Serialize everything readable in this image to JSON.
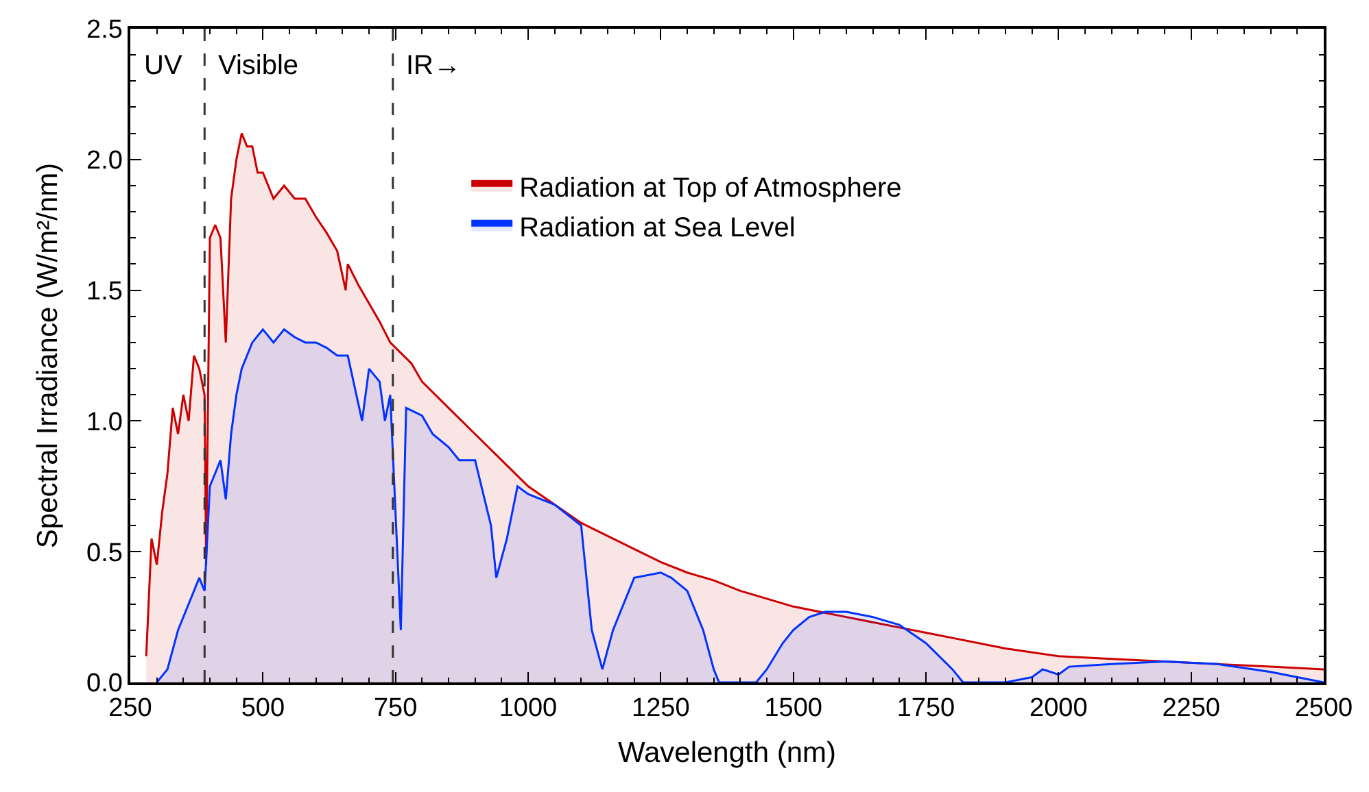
{
  "chart_data": {
    "type": "area",
    "xlabel": "Wavelength (nm)",
    "ylabel": "Spectral Irradiance (W/m²/nm)",
    "xlim": [
      250,
      2500
    ],
    "xticks": [
      250,
      500,
      750,
      1000,
      1250,
      1500,
      1750,
      2000,
      2250,
      2500
    ],
    "ylim": [
      0,
      2.5
    ],
    "yticks": [
      {
        "value": 0,
        "label": "0.0"
      },
      0.5,
      {
        "value": 1,
        "label": "1.0"
      },
      1.5,
      {
        "value": 2,
        "label": "2.0"
      },
      2.5
    ],
    "legend": "top",
    "marker": "none",
    "line_style": "solid",
    "ref_lines": [
      {
        "axis": "x",
        "value": 390,
        "line_style": "dashed",
        "color": "#333333"
      },
      {
        "axis": "x",
        "value": 745,
        "line_style": "dashed",
        "color": "#333333"
      }
    ],
    "annotations": [
      "UV",
      "Visible",
      "IR→"
    ],
    "series": [
      {
        "name": "Radiation at Top of Atmosphere",
        "color": "#cc0000",
        "x": [
          280,
          290,
          300,
          310,
          320,
          330,
          340,
          350,
          360,
          370,
          380,
          390,
          393,
          400,
          410,
          420,
          430,
          440,
          450,
          460,
          470,
          480,
          490,
          500,
          520,
          540,
          560,
          580,
          600,
          620,
          640,
          656,
          660,
          680,
          700,
          720,
          740,
          760,
          780,
          800,
          850,
          900,
          950,
          1000,
          1050,
          1100,
          1150,
          1200,
          1250,
          1300,
          1350,
          1400,
          1450,
          1500,
          1550,
          1600,
          1650,
          1700,
          1750,
          1800,
          1900,
          2000,
          2100,
          2200,
          2300,
          2400,
          2500
        ],
        "values": [
          0.1,
          0.55,
          0.45,
          0.65,
          0.8,
          1.05,
          0.95,
          1.1,
          1.0,
          1.25,
          1.2,
          1.1,
          0.45,
          1.7,
          1.75,
          1.7,
          1.3,
          1.85,
          2.0,
          2.1,
          2.05,
          2.05,
          1.95,
          1.95,
          1.85,
          1.9,
          1.85,
          1.85,
          1.78,
          1.72,
          1.65,
          1.5,
          1.6,
          1.52,
          1.45,
          1.38,
          1.3,
          1.26,
          1.22,
          1.15,
          1.05,
          0.95,
          0.85,
          0.75,
          0.68,
          0.61,
          0.56,
          0.51,
          0.46,
          0.42,
          0.39,
          0.35,
          0.32,
          0.29,
          0.27,
          0.25,
          0.23,
          0.21,
          0.19,
          0.17,
          0.13,
          0.1,
          0.09,
          0.08,
          0.07,
          0.06,
          0.05
        ]
      },
      {
        "name": "Radiation at Sea Level",
        "color": "#0033ff",
        "x": [
          300,
          320,
          340,
          360,
          380,
          390,
          400,
          410,
          420,
          430,
          440,
          450,
          460,
          480,
          500,
          520,
          540,
          560,
          580,
          600,
          620,
          640,
          660,
          687,
          700,
          720,
          730,
          740,
          760,
          770,
          800,
          820,
          850,
          870,
          900,
          930,
          940,
          960,
          980,
          1000,
          1050,
          1100,
          1120,
          1140,
          1160,
          1200,
          1250,
          1270,
          1300,
          1330,
          1350,
          1360,
          1400,
          1430,
          1450,
          1480,
          1500,
          1530,
          1560,
          1600,
          1650,
          1700,
          1750,
          1800,
          1820,
          1900,
          1950,
          1970,
          2000,
          2020,
          2100,
          2200,
          2300,
          2400,
          2500
        ],
        "values": [
          0,
          0.05,
          0.2,
          0.3,
          0.4,
          0.35,
          0.75,
          0.8,
          0.85,
          0.7,
          0.95,
          1.1,
          1.2,
          1.3,
          1.35,
          1.3,
          1.35,
          1.32,
          1.3,
          1.3,
          1.28,
          1.25,
          1.25,
          1.0,
          1.2,
          1.15,
          1.0,
          1.1,
          0.2,
          1.05,
          1.02,
          0.95,
          0.9,
          0.85,
          0.85,
          0.6,
          0.4,
          0.55,
          0.75,
          0.72,
          0.68,
          0.6,
          0.2,
          0.05,
          0.2,
          0.4,
          0.42,
          0.4,
          0.35,
          0.2,
          0.05,
          0,
          0,
          0,
          0.05,
          0.15,
          0.2,
          0.25,
          0.27,
          0.27,
          0.25,
          0.22,
          0.15,
          0.05,
          0,
          0,
          0.02,
          0.05,
          0.03,
          0.06,
          0.07,
          0.08,
          0.07,
          0.04,
          0
        ]
      }
    ]
  }
}
